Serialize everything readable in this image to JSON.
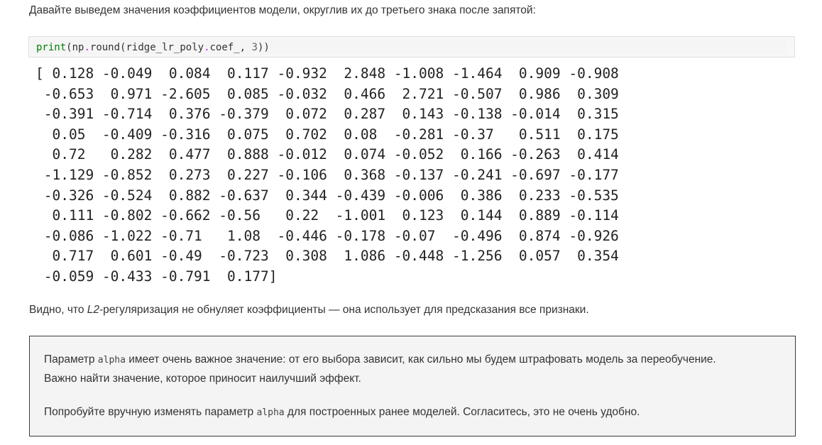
{
  "intro_text": "Давайте выведем значения коэффициентов модели, округлив их до третьего знака после запятой:",
  "code": {
    "fn": "print",
    "open": "(",
    "obj": "np",
    "dot1": ".",
    "method": "round",
    "open2": "(",
    "arg": "ridge_lr_poly",
    "dot2": ".",
    "attr": "coef_",
    "comma": ", ",
    "digits": "3",
    "close": "))"
  },
  "output_rows": [
    "[ 0.128 -0.049  0.084  0.117 -0.932  2.848 -1.008 -1.464  0.909 -0.908",
    " -0.653  0.971 -2.605  0.085 -0.032  0.466  2.721 -0.507  0.986  0.309",
    " -0.391 -0.714  0.376 -0.379  0.072  0.287  0.143 -0.138 -0.014  0.315",
    "  0.05  -0.409 -0.316  0.075  0.702  0.08  -0.281 -0.37   0.511  0.175",
    "  0.72   0.282  0.477  0.888 -0.012  0.074 -0.052  0.166 -0.263  0.414",
    " -1.129 -0.852  0.273  0.227 -0.106  0.368 -0.137 -0.241 -0.697 -0.177",
    " -0.326 -0.524  0.882 -0.637  0.344 -0.439 -0.006  0.386  0.233 -0.535",
    "  0.111 -0.802 -0.662 -0.56   0.22  -1.001  0.123  0.144  0.889 -0.114",
    " -0.086 -1.022 -0.71   1.08  -0.446 -0.178 -0.07  -0.496  0.874 -0.926",
    "  0.717  0.601 -0.49  -0.723  0.308  1.086 -0.448 -1.256  0.057  0.354",
    " -0.059 -0.433 -0.791  0.177]"
  ],
  "conclusion": {
    "before": "Видно, что ",
    "em": "L2",
    "after": "-регуляризация не обнуляет коэффициенты — она использует для предсказания все признаки."
  },
  "note": {
    "p1_before": "Параметр ",
    "p1_code": "alpha",
    "p1_after": " имеет очень важное значение: от его выбора зависит, как сильно мы будем штрафовать модель за переобучение.",
    "p1_line2": "Важно найти значение, которое приносит наилучший эффект.",
    "p2_before": "Попробуйте вручную изменять параметр ",
    "p2_code": "alpha",
    "p2_after": " для построенных ранее моделей. Согласитесь, это не очень удобно."
  }
}
